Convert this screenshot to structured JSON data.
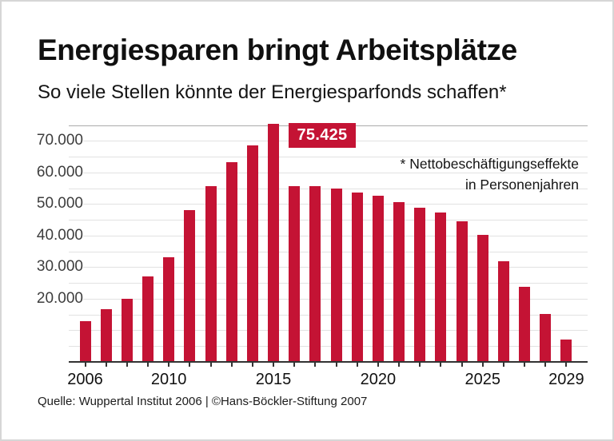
{
  "header": {
    "title": "Energiesparen bringt Arbeitsplätze",
    "subtitle": "So viele Stellen könnte der Energiesparfonds schaffen*"
  },
  "annotation": {
    "line1": "* Nettobeschäftigungseffekte",
    "line2": "in Personenjahren"
  },
  "footer": {
    "source": "Quelle: Wuppertal Institut 2006 | ©Hans-Böckler-Stiftung 2007"
  },
  "colors": {
    "bar": "#c41334",
    "peak_badge_bg": "#c41334",
    "peak_badge_text": "#ffffff",
    "gridline": "#e2e2e2",
    "gridline_top": "#ababab",
    "axis": "#333333",
    "y_tick_text": "#3d3d3d",
    "x_tick_text": "#111111"
  },
  "chart_data": {
    "type": "bar",
    "title": "Energiesparen bringt Arbeitsplätze",
    "subtitle": "So viele Stellen könnte der Energiesparfonds schaffen*",
    "unit_note": "* Nettobeschäftigungseffekte in Personenjahren",
    "categories": [
      2006,
      2007,
      2008,
      2009,
      2010,
      2011,
      2012,
      2013,
      2014,
      2015,
      2016,
      2017,
      2018,
      2019,
      2020,
      2021,
      2022,
      2023,
      2024,
      2025,
      2026,
      2027,
      2028,
      2029
    ],
    "values": [
      12900,
      16600,
      20000,
      27100,
      33200,
      48000,
      55700,
      63300,
      68500,
      75425,
      55700,
      55700,
      54800,
      53600,
      52500,
      50600,
      48900,
      47300,
      44500,
      40300,
      31900,
      23700,
      15300,
      7000
    ],
    "peak": {
      "year": 2015,
      "value": 75425,
      "label": "75.425"
    },
    "x_tick_labels": [
      "2006",
      "2010",
      "2015",
      "2020",
      "2025",
      "2029"
    ],
    "y_tick_labels": [
      "20.000",
      "30.000",
      "40.000",
      "50.000",
      "60.000",
      "70.000"
    ],
    "y_label_step": 10000,
    "y_gridline_step": 5000,
    "y_gridline_max": 75000,
    "ylim": [
      0,
      76150
    ],
    "grid": true,
    "legend": false,
    "ylabel": "",
    "xlabel": ""
  }
}
